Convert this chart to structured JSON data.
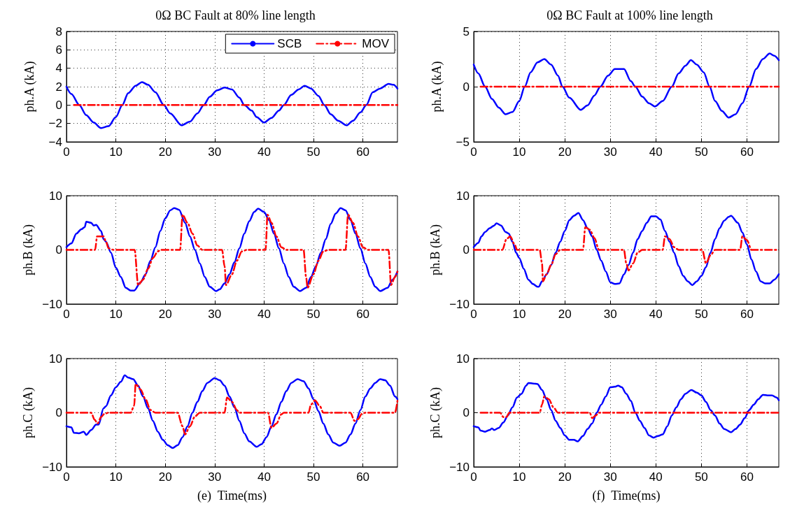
{
  "chart_data": [
    {
      "type": "line",
      "title": "0Ω BC Fault at 80% line length",
      "ylabel": "ph.A (kA)",
      "xlim": [
        0,
        67
      ],
      "xticks": [
        0,
        10,
        20,
        30,
        40,
        50,
        60
      ],
      "ylim": [
        -4,
        8
      ],
      "yticks": [
        -4,
        -2,
        0,
        2,
        4,
        6,
        8
      ],
      "grid": true,
      "legend": "top right",
      "marker": "none",
      "series": [
        {
          "name": "SCB",
          "color": "#0000ff",
          "line_style": "solid",
          "x": [
            0,
            1,
            2.6,
            4,
            5.5,
            7,
            8.5,
            10,
            11.3,
            12.5,
            14,
            15.3,
            16.5,
            18,
            19.7,
            21,
            23.3,
            25,
            26.5,
            27.8,
            29,
            30.5,
            32,
            33.5,
            35,
            36,
            37.5,
            38.5,
            40,
            41.5,
            43,
            44,
            45.5,
            47,
            48.2,
            49.5,
            51,
            52.2,
            53.5,
            55,
            56.7,
            58,
            59.5,
            60.7,
            62,
            63.5,
            65.2,
            66.2,
            67
          ],
          "values": [
            2,
            1.2,
            0,
            -1.1,
            -1.9,
            -2.5,
            -2.3,
            -1.3,
            0,
            1.3,
            2.1,
            2.5,
            2.2,
            1.4,
            0,
            -0.9,
            -2.2,
            -1.8,
            -0.9,
            0,
            0.9,
            1.6,
            1.9,
            1.7,
            0.8,
            0,
            -0.6,
            -1.3,
            -1.9,
            -1.4,
            -0.6,
            0,
            1.1,
            1.7,
            2.1,
            1.8,
            1,
            0,
            -1,
            -1.7,
            -2.2,
            -1.7,
            -0.8,
            0,
            1.4,
            1.8,
            2.3,
            2.2,
            1.8
          ]
        },
        {
          "name": "MOV",
          "color": "#ff0000",
          "line_style": "dashed",
          "x": [
            1.5,
            67
          ],
          "values": [
            0,
            0
          ]
        }
      ]
    },
    {
      "type": "line",
      "title": "0Ω BC Fault at 100% line length",
      "ylabel": "ph.A (kA)",
      "xlim": [
        0,
        67
      ],
      "xticks": [
        0,
        10,
        20,
        30,
        40,
        50,
        60
      ],
      "ylim": [
        -5,
        5
      ],
      "yticks": [
        -5,
        0,
        5
      ],
      "grid": true,
      "marker": "none",
      "series": [
        {
          "color": "#0000ff",
          "line_style": "solid",
          "x": [
            0,
            1,
            2.5,
            4,
            5.5,
            7,
            8.5,
            10,
            11.2,
            12.5,
            14,
            15.5,
            17,
            18.5,
            19.5,
            21,
            23.5,
            25,
            26.5,
            27.8,
            29.5,
            31,
            33,
            34.5,
            35.5,
            37,
            38.5,
            39.8,
            41.5,
            43.5,
            45,
            46.5,
            47.7,
            49,
            50.5,
            51.8,
            53,
            54.5,
            56,
            57.5,
            59,
            60.5,
            62,
            63.5,
            65,
            66,
            67
          ],
          "values": [
            2,
            1.2,
            0,
            -1.1,
            -1.9,
            -2.5,
            -2.3,
            -1.3,
            0,
            1.3,
            2.2,
            2.5,
            2,
            1,
            0,
            -1,
            -2.1,
            -1.7,
            -0.8,
            0,
            1,
            1.6,
            1.6,
            0.5,
            0,
            -0.9,
            -1.5,
            -1.8,
            -1.3,
            0,
            1.2,
            1.9,
            2.4,
            2,
            1.3,
            0,
            -1.3,
            -2.2,
            -2.8,
            -2.5,
            -1.5,
            0,
            1.6,
            2.5,
            3,
            2.8,
            2.4
          ]
        },
        {
          "color": "#ff0000",
          "line_style": "dashed",
          "x": [
            1.5,
            67
          ],
          "values": [
            0,
            0
          ]
        }
      ]
    },
    {
      "type": "line",
      "ylabel": "ph.B (kA)",
      "xlim": [
        0,
        67
      ],
      "xticks": [
        0,
        10,
        20,
        30,
        40,
        50,
        60
      ],
      "ylim": [
        -10,
        10
      ],
      "yticks": [
        -10,
        0,
        10
      ],
      "grid": true,
      "marker": "none",
      "series": [
        {
          "color": "#0000ff",
          "line_style": "solid",
          "x": [
            0,
            1,
            2,
            3,
            3.7,
            4,
            5,
            5.5,
            6,
            7,
            7.5,
            8,
            9,
            10,
            11,
            12,
            13,
            13.7,
            15,
            16,
            17,
            18,
            19,
            20,
            21,
            21.8,
            22.8,
            24,
            25,
            26,
            27,
            28,
            29,
            30.3,
            31,
            32,
            33,
            34,
            35,
            36,
            37,
            38,
            38.8,
            40,
            41,
            42,
            43,
            44,
            45,
            46,
            47.3,
            48.5,
            49.5,
            50.5,
            51.5,
            52.5,
            53.5,
            54.5,
            55.5,
            56.5,
            57.5,
            58.5,
            59.5,
            60.5,
            61.5,
            62.5,
            63.5,
            65,
            66,
            67
          ],
          "values": [
            0.5,
            1.2,
            3,
            3.8,
            4.2,
            5.2,
            5,
            4.5,
            4.6,
            3.5,
            2,
            1.5,
            -0.5,
            -3.3,
            -5,
            -7,
            -7.5,
            -7.5,
            -6,
            -4.5,
            -2,
            0.5,
            3.5,
            5.8,
            7.3,
            7.7,
            7.4,
            5,
            2.5,
            0,
            -2.5,
            -5,
            -6.8,
            -7.6,
            -7.3,
            -6.2,
            -4.5,
            -2.3,
            0.3,
            3,
            5.3,
            7,
            7.6,
            7,
            5.5,
            3,
            0.3,
            -2.5,
            -5,
            -6.8,
            -7.6,
            -7,
            -5,
            -3,
            -0.5,
            2,
            4.8,
            6.7,
            7.7,
            7.3,
            5.5,
            3,
            0.3,
            -2.5,
            -5,
            -6.8,
            -7.6,
            -7,
            -5.5,
            -4
          ]
        },
        {
          "color": "#ff0000",
          "line_style": "dashed",
          "x": [
            0,
            5.8,
            6.2,
            7.5,
            8,
            8.5,
            9.5,
            13.8,
            14.5,
            15.5,
            16.5,
            17.5,
            18.5,
            19,
            23,
            23.5,
            24.5,
            25.5,
            26.5,
            27.5,
            31.5,
            32,
            32.3,
            33.5,
            34.5,
            35.5,
            36.5,
            40.3,
            40.7,
            41.5,
            42.5,
            43.5,
            44.5,
            48,
            48.5,
            48.8,
            50,
            51,
            52,
            53,
            56.5,
            57,
            58,
            59,
            60,
            61,
            65.2,
            65.7,
            66.5,
            67
          ],
          "values": [
            0,
            0,
            2.5,
            2.5,
            1.5,
            0.3,
            0,
            0,
            -6.5,
            -5.5,
            -3.5,
            -1.5,
            -0.3,
            0,
            0,
            6.5,
            5,
            3,
            0.8,
            0,
            0,
            -3,
            -6.5,
            -4.5,
            -2,
            -0.3,
            0,
            0,
            6.5,
            5,
            2.5,
            0.5,
            0,
            0,
            -5,
            -7,
            -4.5,
            -2,
            -0.3,
            0,
            0,
            6.5,
            5,
            2.5,
            0.5,
            0,
            0,
            -6.5,
            -5,
            -4
          ]
        }
      ]
    },
    {
      "type": "line",
      "ylabel": "ph.B (kA)",
      "xlim": [
        0,
        67
      ],
      "xticks": [
        0,
        10,
        20,
        30,
        40,
        50,
        60
      ],
      "ylim": [
        -10,
        10
      ],
      "yticks": [
        -10,
        0,
        10
      ],
      "grid": true,
      "marker": "none",
      "series": [
        {
          "color": "#0000ff",
          "line_style": "solid",
          "x": [
            0,
            1,
            1.7,
            2.5,
            3.5,
            4.5,
            5,
            6,
            7,
            7.7,
            8.5,
            9.3,
            10,
            11,
            12,
            13,
            14,
            14.3,
            15,
            16,
            17,
            18,
            19,
            20,
            21,
            22,
            23,
            24,
            25,
            26,
            27,
            28,
            29,
            30,
            31,
            32,
            33,
            34,
            35,
            36,
            37,
            38,
            39,
            40,
            41,
            42,
            43,
            44,
            45,
            46,
            47,
            48,
            49,
            50,
            51,
            52,
            53,
            54,
            55,
            56,
            56.5,
            58,
            59,
            60,
            61,
            62,
            63,
            64,
            65,
            66,
            67
          ],
          "values": [
            0.5,
            1.3,
            2.5,
            3.3,
            4,
            4.5,
            4.9,
            4.5,
            3.3,
            3,
            1.5,
            -0.5,
            -1.5,
            -3.5,
            -5.5,
            -6.3,
            -6.8,
            -6.8,
            -5.8,
            -4.5,
            -2.8,
            -0.5,
            1.5,
            3.5,
            5.5,
            6.3,
            6.8,
            5.5,
            4,
            2.5,
            0,
            -2,
            -4,
            -6,
            -6.3,
            -6.2,
            -4.5,
            -2.8,
            -0.5,
            2,
            3.5,
            5,
            6.2,
            6.2,
            5.6,
            3.5,
            1.5,
            -0.5,
            -3,
            -4.8,
            -5.8,
            -6.5,
            -5.8,
            -4.8,
            -3.2,
            -0.5,
            2,
            4,
            5.4,
            6.1,
            6.3,
            5,
            3.2,
            1,
            -1.8,
            -4,
            -5.8,
            -6.2,
            -6.2,
            -5.5,
            -4.5
          ]
        },
        {
          "color": "#ff0000",
          "line_style": "dashed",
          "x": [
            0,
            6.3,
            7.2,
            8,
            9,
            9.5,
            14.5,
            15,
            15.2,
            16,
            17,
            18,
            19,
            24,
            24.5,
            25.5,
            26.5,
            27.5,
            33,
            33.5,
            34,
            35,
            36,
            37,
            41.5,
            42,
            43,
            44,
            45,
            50.2,
            51,
            52,
            53,
            58.5,
            59,
            60,
            61,
            67
          ],
          "values": [
            0,
            0,
            2,
            2.5,
            1,
            0,
            0,
            -2.5,
            -5.8,
            -4.5,
            -2.8,
            -0.8,
            0,
            0,
            4.2,
            3.7,
            2.2,
            0,
            0,
            -2.5,
            -3.8,
            -2.5,
            -0.5,
            0,
            0,
            2.5,
            2,
            0.5,
            0,
            0,
            -2.5,
            -1,
            0,
            0,
            2.5,
            1.8,
            0,
            0
          ]
        }
      ]
    },
    {
      "type": "line",
      "ylabel": "ph.C (kA)",
      "xlabel": "(e)  Time(ms)",
      "xlim": [
        0,
        67
      ],
      "xticks": [
        0,
        10,
        20,
        30,
        40,
        50,
        60
      ],
      "ylim": [
        -10,
        10
      ],
      "yticks": [
        -10,
        0,
        10
      ],
      "grid": true,
      "marker": "none",
      "series": [
        {
          "color": "#0000ff",
          "line_style": "solid",
          "x": [
            0,
            1,
            1.5,
            2.5,
            3.5,
            4,
            5,
            6,
            6.5,
            7.5,
            8,
            9,
            10,
            11,
            11.8,
            12.5,
            13.5,
            14.5,
            15.5,
            16.5,
            17.5,
            18.5,
            19.5,
            20.5,
            21.5,
            22.5,
            23.5,
            24.5,
            25.5,
            26.5,
            27.5,
            28.5,
            30,
            31,
            32,
            33,
            34,
            35,
            36,
            37,
            38.5,
            39.5,
            40.5,
            41.5,
            42.5,
            43.5,
            44.5,
            45.5,
            46.8,
            48,
            49,
            50,
            51,
            52,
            53,
            54,
            55.3,
            56.5,
            57.5,
            58.5,
            59.5,
            60.5,
            61.5,
            62.5,
            63.5,
            64.5,
            65.5,
            66.5,
            67
          ],
          "values": [
            -2.5,
            -2.7,
            -3.7,
            -3.8,
            -3.5,
            -4.1,
            -3.2,
            -2.2,
            -2.2,
            0.8,
            1.2,
            3.2,
            4.7,
            5.7,
            6.9,
            6.5,
            6.2,
            5,
            3,
            0.8,
            -1.5,
            -3.5,
            -5,
            -6,
            -6.5,
            -6,
            -4.5,
            -2.5,
            0,
            2,
            4,
            5.5,
            6.4,
            6,
            5,
            3,
            1,
            -1.5,
            -3.8,
            -5.3,
            -6.3,
            -5.8,
            -4.5,
            -2.5,
            -0.3,
            2,
            4,
            5.5,
            6.2,
            5.8,
            4.5,
            2.5,
            0.3,
            -2,
            -4,
            -5.5,
            -6.1,
            -5.5,
            -4,
            -2,
            0.5,
            3,
            4.5,
            5.5,
            6.2,
            6,
            5,
            3,
            2.5
          ]
        },
        {
          "color": "#ff0000",
          "line_style": "dashed",
          "x": [
            0,
            5,
            5.7,
            6.3,
            7,
            7.7,
            8.5,
            13,
            13.7,
            14,
            15,
            16,
            17,
            18,
            22.5,
            23.5,
            24,
            25,
            26,
            27,
            32,
            32.5,
            33.5,
            34.5,
            35,
            40.8,
            41.5,
            42.5,
            43.5,
            44,
            49,
            49.5,
            50.3,
            51.3,
            52,
            57.5,
            58.3,
            59,
            59.8,
            60.5,
            66.5,
            67
          ],
          "values": [
            0,
            0,
            -1.3,
            -2,
            -0.8,
            -0.2,
            0,
            0,
            1.3,
            5.3,
            4.3,
            2.5,
            0.5,
            0,
            0,
            -2.5,
            -4,
            -2.5,
            -0.7,
            0,
            0,
            2.8,
            2,
            0.5,
            0,
            0,
            -2.8,
            -2,
            -0.3,
            0,
            0,
            1.5,
            2.3,
            1.2,
            0,
            0,
            -1.5,
            -1.2,
            -0.2,
            0,
            0,
            2.2
          ]
        }
      ]
    },
    {
      "type": "line",
      "ylabel": "ph.C (kA)",
      "xlabel": "(f)  Time(ms)",
      "xlim": [
        0,
        67
      ],
      "xticks": [
        0,
        10,
        20,
        30,
        40,
        50,
        60
      ],
      "ylim": [
        -10,
        10
      ],
      "yticks": [
        -10,
        0,
        10
      ],
      "grid": true,
      "marker": "none",
      "series": [
        {
          "color": "#0000ff",
          "line_style": "solid",
          "x": [
            0,
            1,
            1.5,
            2.5,
            3.5,
            4,
            4.5,
            5.5,
            6.5,
            7.5,
            8.5,
            9.5,
            10.5,
            11.5,
            12,
            13,
            14,
            15,
            16,
            17,
            18,
            19,
            20,
            21,
            22,
            22.8,
            24,
            25,
            26,
            27,
            28,
            29,
            30,
            31,
            31.7,
            32.5,
            33.5,
            34.5,
            35.5,
            36.5,
            37.5,
            38.5,
            39.5,
            40.5,
            41.5,
            42.5,
            43.5,
            44.5,
            45.5,
            46.5,
            47.8,
            49,
            50,
            51,
            52,
            53,
            54,
            55,
            56.5,
            57.5,
            58.5,
            59.5,
            60.5,
            61.5,
            62.5,
            63.5,
            64.5,
            65.5,
            66.5,
            67
          ],
          "values": [
            -2.5,
            -2.7,
            -3.3,
            -3.5,
            -3.2,
            -2.9,
            -3.2,
            -2.8,
            -1.8,
            -0.5,
            1,
            2.8,
            3.5,
            5,
            5.5,
            5.4,
            5.3,
            4.2,
            2.5,
            0.5,
            -1.5,
            -2.8,
            -4.2,
            -5,
            -5,
            -5.3,
            -4.3,
            -3,
            -2,
            0,
            1.5,
            3,
            4.7,
            4.8,
            5,
            4.7,
            3.5,
            2.2,
            0,
            -1.5,
            -2.8,
            -4.2,
            -4.6,
            -4.3,
            -4,
            -2.5,
            -0.5,
            1,
            2.5,
            3.5,
            4.2,
            3.7,
            3.2,
            2,
            0.5,
            -0.5,
            -2,
            -3,
            -3.6,
            -3,
            -2.2,
            -1,
            0.5,
            1.5,
            2.5,
            3.3,
            3.2,
            3.2,
            2.8,
            2.3
          ]
        },
        {
          "color": "#ff0000",
          "line_style": "dashed",
          "x": [
            1.5,
            5.8,
            6.5,
            7.2,
            7.8,
            14.5,
            15,
            15.5,
            16.5,
            17.5,
            18.5,
            25.5,
            26,
            26.8,
            27.5,
            67
          ],
          "values": [
            0,
            0,
            -0.8,
            -0.8,
            0,
            0,
            1.5,
            3,
            2.5,
            1,
            0,
            0,
            -1,
            -0.5,
            0,
            0
          ]
        }
      ]
    }
  ]
}
